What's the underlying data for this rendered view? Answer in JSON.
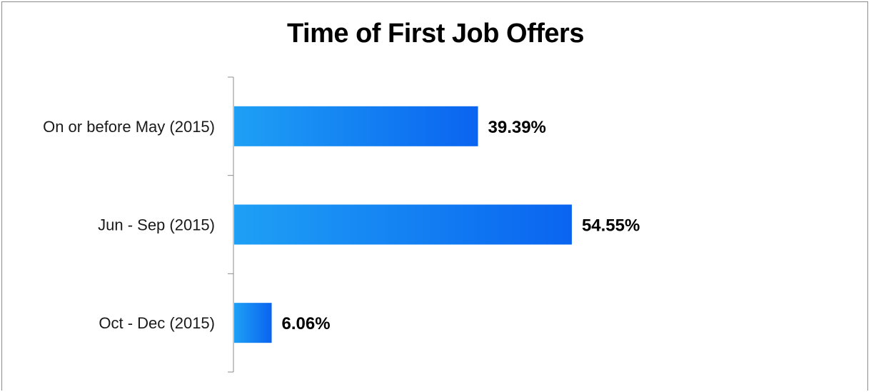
{
  "chart_data": {
    "type": "bar",
    "orientation": "horizontal",
    "title": "Time of First Job Offers",
    "xlabel": "",
    "ylabel": "",
    "categories": [
      "On or before May (2015)",
      "Jun - Sep (2015)",
      "Oct - Dec (2015)"
    ],
    "values": [
      39.39,
      54.55,
      6.06
    ],
    "value_labels": [
      "39.39%",
      "54.55%",
      "6.06%"
    ],
    "unit": "%",
    "xlim": [
      0,
      100
    ],
    "grid": false,
    "legend": "none",
    "colors": {
      "bar_start": "#1ea0f5",
      "bar_end": "#0a64f0",
      "axis": "#8c8c8c"
    }
  }
}
